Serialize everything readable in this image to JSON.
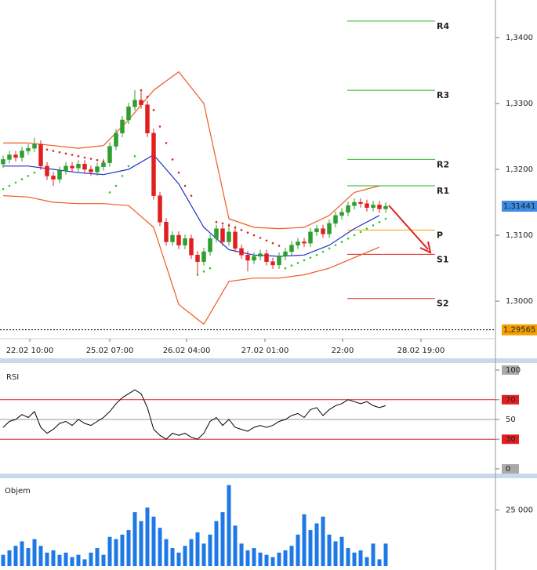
{
  "chart_data": [
    {
      "type": "candlestick",
      "up_color": "#2e9e2e",
      "down_color": "#e02020",
      "candles": [
        [
          1.3208,
          1.3221,
          1.3202,
          1.3215
        ],
        [
          1.3215,
          1.3228,
          1.3209,
          1.3222
        ],
        [
          1.3222,
          1.3228,
          1.3212,
          1.3218
        ],
        [
          1.3218,
          1.3234,
          1.3212,
          1.3228
        ],
        [
          1.3228,
          1.3238,
          1.3222,
          1.3232
        ],
        [
          1.3232,
          1.3248,
          1.3226,
          1.3238
        ],
        [
          1.3238,
          1.3244,
          1.3199,
          1.3205
        ],
        [
          1.3205,
          1.3211,
          1.3184,
          1.319
        ],
        [
          1.319,
          1.3196,
          1.3175,
          1.3185
        ],
        [
          1.3185,
          1.3204,
          1.3179,
          1.3198
        ],
        [
          1.3198,
          1.3211,
          1.3192,
          1.3205
        ],
        [
          1.3205,
          1.3211,
          1.3196,
          1.3202
        ],
        [
          1.3202,
          1.3214,
          1.3196,
          1.3208
        ],
        [
          1.3208,
          1.3214,
          1.3194,
          1.32
        ],
        [
          1.32,
          1.3206,
          1.319,
          1.3196
        ],
        [
          1.3196,
          1.321,
          1.319,
          1.3204
        ],
        [
          1.3204,
          1.3216,
          1.3198,
          1.321
        ],
        [
          1.321,
          1.3241,
          1.3204,
          1.3235
        ],
        [
          1.3235,
          1.3261,
          1.3229,
          1.3255
        ],
        [
          1.3255,
          1.3281,
          1.3249,
          1.3275
        ],
        [
          1.3275,
          1.3301,
          1.3269,
          1.3295
        ],
        [
          1.3295,
          1.332,
          1.3289,
          1.3305
        ],
        [
          1.3305,
          1.3318,
          1.3292,
          1.3298
        ],
        [
          1.3298,
          1.3304,
          1.3249,
          1.3255
        ],
        [
          1.3255,
          1.3262,
          1.3154,
          1.316
        ],
        [
          1.316,
          1.3166,
          1.3114,
          1.312
        ],
        [
          1.312,
          1.3126,
          1.3084,
          1.309
        ],
        [
          1.309,
          1.3106,
          1.3084,
          1.31
        ],
        [
          1.31,
          1.3106,
          1.3079,
          1.3085
        ],
        [
          1.3085,
          1.3101,
          1.3079,
          1.3095
        ],
        [
          1.3095,
          1.3101,
          1.3064,
          1.307
        ],
        [
          1.307,
          1.3076,
          1.304,
          1.306
        ],
        [
          1.306,
          1.3081,
          1.3054,
          1.3075
        ],
        [
          1.3075,
          1.3101,
          1.3069,
          1.3095
        ],
        [
          1.3095,
          1.3116,
          1.3089,
          1.311
        ],
        [
          1.311,
          1.3116,
          1.3084,
          1.309
        ],
        [
          1.309,
          1.3118,
          1.3084,
          1.3105
        ],
        [
          1.3105,
          1.3111,
          1.3074,
          1.308
        ],
        [
          1.308,
          1.3086,
          1.3064,
          1.307
        ],
        [
          1.307,
          1.3076,
          1.3045,
          1.3062
        ],
        [
          1.3062,
          1.3074,
          1.3056,
          1.3068
        ],
        [
          1.3068,
          1.3078,
          1.3062,
          1.3072
        ],
        [
          1.3072,
          1.3078,
          1.3054,
          1.306
        ],
        [
          1.306,
          1.3066,
          1.3049,
          1.3055
        ],
        [
          1.3055,
          1.3074,
          1.3049,
          1.3068
        ],
        [
          1.3068,
          1.3081,
          1.3062,
          1.3075
        ],
        [
          1.3075,
          1.3091,
          1.3069,
          1.3085
        ],
        [
          1.3085,
          1.3096,
          1.3079,
          1.309
        ],
        [
          1.309,
          1.3096,
          1.3082,
          1.3088
        ],
        [
          1.3088,
          1.3111,
          1.3082,
          1.3105
        ],
        [
          1.3105,
          1.3116,
          1.3099,
          1.311
        ],
        [
          1.311,
          1.3116,
          1.3096,
          1.3102
        ],
        [
          1.3102,
          1.3124,
          1.3096,
          1.3118
        ],
        [
          1.3118,
          1.3136,
          1.3112,
          1.313
        ],
        [
          1.313,
          1.3141,
          1.3124,
          1.3135
        ],
        [
          1.3135,
          1.3151,
          1.3129,
          1.3145
        ],
        [
          1.3145,
          1.3156,
          1.3139,
          1.315
        ],
        [
          1.315,
          1.3156,
          1.3142,
          1.3148
        ],
        [
          1.3148,
          1.3154,
          1.3136,
          1.3142
        ],
        [
          1.3142,
          1.3152,
          1.3136,
          1.3146
        ],
        [
          1.3146,
          1.3152,
          1.3134,
          1.314
        ],
        [
          1.314,
          1.315,
          1.3134,
          1.3144
        ]
      ],
      "lines": [
        {
          "color": "#f05a1e",
          "x": [
            0,
            4,
            8,
            12,
            16,
            20,
            24,
            28,
            32,
            36,
            40,
            44,
            48,
            52,
            56,
            60
          ],
          "values": [
            1.324,
            1.324,
            1.3236,
            1.3232,
            1.3236,
            1.3275,
            1.332,
            1.3348,
            1.33,
            1.3125,
            1.3112,
            1.311,
            1.3112,
            1.313,
            1.3165,
            1.3175
          ]
        },
        {
          "color": "#f05a1e",
          "x": [
            0,
            4,
            8,
            12,
            16,
            20,
            24,
            28,
            32,
            36,
            40,
            44,
            48,
            52,
            56,
            60
          ],
          "values": [
            1.316,
            1.3158,
            1.315,
            1.3148,
            1.3148,
            1.3145,
            1.3112,
            1.2995,
            1.2965,
            1.303,
            1.3035,
            1.3035,
            1.304,
            1.305,
            1.3066,
            1.3082
          ]
        },
        {
          "color": "#1e32c8",
          "x": [
            0,
            4,
            8,
            12,
            16,
            20,
            24,
            28,
            32,
            36,
            40,
            44,
            48,
            52,
            56,
            60
          ],
          "values": [
            1.3205,
            1.3205,
            1.32,
            1.3195,
            1.3192,
            1.32,
            1.3222,
            1.3178,
            1.3112,
            1.3078,
            1.307,
            1.3068,
            1.307,
            1.3085,
            1.311,
            1.313
          ]
        }
      ],
      "dots": [
        {
          "color": "#e02020",
          "x": [
            6,
            7,
            8,
            9,
            10,
            11,
            12,
            13,
            14,
            15,
            16,
            22,
            23,
            24,
            25,
            26,
            27,
            28,
            29,
            30,
            34,
            35,
            36,
            37,
            38,
            39,
            40,
            41,
            42,
            43,
            44
          ],
          "values": [
            1.3232,
            1.323,
            1.3228,
            1.3226,
            1.3224,
            1.3222,
            1.322,
            1.3218,
            1.3216,
            1.3214,
            1.3212,
            1.332,
            1.331,
            1.329,
            1.3265,
            1.324,
            1.3215,
            1.3195,
            1.3175,
            1.316,
            1.312,
            1.3118,
            1.3115,
            1.3112,
            1.3108,
            1.3104,
            1.31,
            1.3096,
            1.3092,
            1.3088,
            1.3084
          ]
        },
        {
          "color": "#22cc22",
          "x": [
            0,
            1,
            2,
            3,
            4,
            5,
            17,
            18,
            19,
            20,
            21,
            31,
            32,
            33,
            45,
            46,
            47,
            48,
            49,
            50,
            51,
            52,
            53,
            54,
            55,
            56,
            57,
            58,
            59,
            60,
            61
          ],
          "values": [
            1.317,
            1.3175,
            1.318,
            1.3185,
            1.319,
            1.3195,
            1.3165,
            1.3175,
            1.319,
            1.3205,
            1.322,
            1.304,
            1.3045,
            1.305,
            1.305,
            1.3054,
            1.3058,
            1.3062,
            1.3066,
            1.307,
            1.3075,
            1.308,
            1.3085,
            1.309,
            1.3095,
            1.31,
            1.3105,
            1.311,
            1.3115,
            1.312,
            1.3125
          ]
        }
      ],
      "levels": [
        {
          "label": "R4",
          "value": 1.3425,
          "color": "#22bb22"
        },
        {
          "label": "R3",
          "value": 1.332,
          "color": "#22bb22"
        },
        {
          "label": "R2",
          "value": 1.3215,
          "color": "#22bb22"
        },
        {
          "label": "R1",
          "value": 1.3175,
          "color": "#22bb22"
        },
        {
          "label": "P",
          "value": 1.3108,
          "color": "#f5a000"
        },
        {
          "label": "S1",
          "value": 1.3071,
          "color": "#e02020"
        },
        {
          "label": "S2",
          "value": 1.3004,
          "color": "#e02020"
        }
      ],
      "markers": [
        {
          "value": 1.31441,
          "label": "1,31441",
          "color": "#3c8ce6",
          "dashed": false
        },
        {
          "value": 1.29565,
          "label": "1,29565",
          "color": "#f5a000",
          "dashed": true
        }
      ],
      "xlim": [
        -0.5,
        78.5
      ],
      "xticks": [
        {
          "value": 4.25,
          "label": "22.02 10:00"
        },
        {
          "value": 17,
          "label": "25.02 07:00"
        },
        {
          "value": 29.25,
          "label": "26.02 04:00"
        },
        {
          "value": 41.75,
          "label": "27.02 01:00"
        },
        {
          "value": 54.125,
          "label": "22:00"
        },
        {
          "value": 66.625,
          "label": "28.02 19:00"
        }
      ],
      "ylim": [
        1.2943,
        1.3457
      ],
      "yticks": [
        {
          "value": 1.3,
          "label": "1,3000"
        },
        {
          "value": 1.31,
          "label": "1,3100"
        },
        {
          "value": 1.32,
          "label": "1,3200"
        },
        {
          "value": 1.33,
          "label": "1,3300"
        },
        {
          "value": 1.34,
          "label": "1,3400"
        }
      ]
    },
    {
      "type": "line",
      "title": "RSI",
      "color": "#000000",
      "values": [
        42,
        48,
        50,
        55,
        52,
        58,
        42,
        36,
        40,
        46,
        48,
        44,
        50,
        46,
        44,
        48,
        52,
        58,
        66,
        72,
        76,
        80,
        76,
        62,
        40,
        34,
        30,
        36,
        34,
        36,
        32,
        30,
        36,
        48,
        52,
        44,
        50,
        42,
        40,
        38,
        42,
        44,
        42,
        44,
        48,
        50,
        54,
        56,
        52,
        60,
        62,
        54,
        60,
        64,
        66,
        70,
        68,
        66,
        68,
        64,
        62,
        64
      ],
      "xlim": [
        -0.5,
        78.5
      ],
      "ylim": [
        0,
        100
      ],
      "yticks": [
        0,
        30,
        50,
        70,
        100
      ],
      "tick_colors": [
        "#aaaaaa",
        "#e02020",
        "#ffffff",
        "#e02020",
        "#aaaaaa"
      ]
    },
    {
      "type": "bar",
      "title": "Objem",
      "color": "#1e78e6",
      "values": [
        5000,
        7000,
        9000,
        11000,
        8000,
        12000,
        9000,
        6000,
        7000,
        5000,
        6000,
        4000,
        5000,
        3000,
        6000,
        8000,
        5000,
        13000,
        12000,
        14000,
        16000,
        24000,
        20000,
        26000,
        22000,
        17000,
        12000,
        8000,
        6000,
        9000,
        12000,
        15000,
        10000,
        14000,
        20000,
        24000,
        36000,
        18000,
        10000,
        7000,
        8000,
        6000,
        5000,
        4000,
        6000,
        7000,
        9000,
        14000,
        23000,
        16000,
        19000,
        22000,
        14000,
        11000,
        13000,
        8000,
        6000,
        7000,
        4000,
        10000,
        3000,
        10000
      ],
      "xlim": [
        -0.5,
        78.5
      ],
      "ylim": [
        0,
        38000
      ],
      "yticks": [
        {
          "value": 25000,
          "label": "25 000"
        }
      ]
    }
  ]
}
